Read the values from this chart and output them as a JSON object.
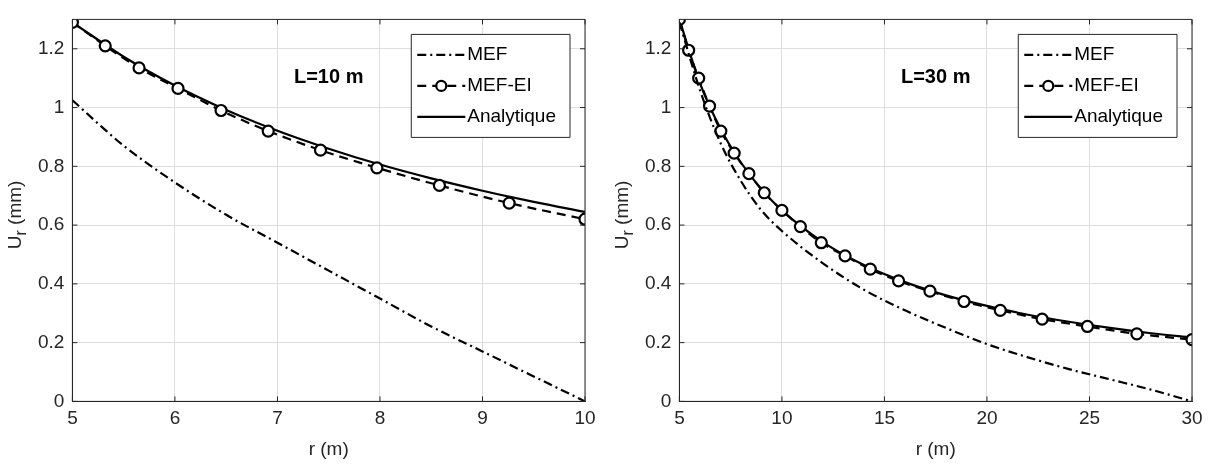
{
  "chart_data": [
    {
      "type": "line",
      "xlabel": "r (m)",
      "ylabel": "U$_{r}$ (mm)",
      "annotations": [
        "L=10 m"
      ],
      "xlim": [
        5,
        10
      ],
      "xticks": [
        5,
        6,
        7,
        8,
        9,
        10
      ],
      "ylim": [
        0,
        1.3
      ],
      "yticks": [
        0,
        0.2,
        0.4,
        0.6,
        0.8,
        1,
        1.2
      ],
      "grid": true,
      "legend": "top right",
      "series": [
        {
          "name": "MEF",
          "color": "#000000",
          "line_style": "dashdot",
          "marker": "none",
          "x": [
            5,
            5.3,
            5.5,
            6,
            6.5,
            7,
            7.5,
            8,
            8.5,
            9,
            9.5,
            10
          ],
          "values": [
            1.025,
            0.93,
            0.87,
            0.745,
            0.635,
            0.54,
            0.445,
            0.35,
            0.255,
            0.17,
            0.085,
            0
          ]
        },
        {
          "name": "MEF-EI",
          "color": "#000000",
          "line_style": "dashed",
          "marker": "circle",
          "x": [
            5,
            5.32,
            5.65,
            6.03,
            6.45,
            6.91,
            7.42,
            7.97,
            8.58,
            9.26,
            10
          ],
          "values": [
            1.29,
            1.21,
            1.135,
            1.065,
            0.99,
            0.92,
            0.855,
            0.795,
            0.735,
            0.675,
            0.62
          ]
        },
        {
          "name": "Analytique",
          "color": "#000000",
          "line_style": "solid",
          "marker": "none",
          "x": [
            5,
            5.5,
            6,
            6.5,
            7,
            7.5,
            8,
            8.5,
            9,
            9.5,
            10
          ],
          "values": [
            1.29,
            1.173,
            1.075,
            0.992,
            0.921,
            0.86,
            0.806,
            0.759,
            0.717,
            0.679,
            0.645
          ]
        }
      ]
    },
    {
      "type": "line",
      "xlabel": "r (m)",
      "ylabel": "U$_{r}$ (mm)",
      "annotations": [
        "L=30 m"
      ],
      "xlim": [
        5,
        30
      ],
      "xticks": [
        5,
        10,
        15,
        20,
        25,
        30
      ],
      "ylim": [
        0,
        1.3
      ],
      "yticks": [
        0,
        0.2,
        0.4,
        0.6,
        0.8,
        1,
        1.2
      ],
      "grid": true,
      "legend": "top right",
      "series": [
        {
          "name": "MEF",
          "color": "#000000",
          "line_style": "dashdot",
          "marker": "none",
          "x": [
            5,
            6,
            7,
            8,
            9,
            10,
            12,
            14,
            16,
            18,
            20,
            22,
            24,
            26,
            28,
            30
          ],
          "values": [
            1.29,
            1.06,
            0.88,
            0.75,
            0.65,
            0.58,
            0.47,
            0.38,
            0.31,
            0.25,
            0.195,
            0.15,
            0.11,
            0.075,
            0.04,
            0
          ]
        },
        {
          "name": "MEF-EI",
          "color": "#000000",
          "line_style": "dashed",
          "marker": "circle",
          "x": [
            5,
            5.45,
            5.94,
            6.47,
            7.02,
            7.67,
            8.39,
            9.14,
            10,
            10.9,
            11.92,
            13.08,
            14.31,
            15.69,
            17.22,
            18.88,
            20.65,
            22.69,
            24.9,
            27.31,
            30
          ],
          "values": [
            1.3,
            1.195,
            1.1,
            1.005,
            0.92,
            0.845,
            0.775,
            0.71,
            0.65,
            0.595,
            0.54,
            0.495,
            0.45,
            0.41,
            0.375,
            0.34,
            0.31,
            0.28,
            0.255,
            0.23,
            0.21
          ]
        },
        {
          "name": "Analytique",
          "color": "#000000",
          "line_style": "solid",
          "marker": "none",
          "x": [
            5,
            6,
            7,
            8,
            9,
            10,
            12,
            14,
            16,
            18,
            20,
            22,
            24,
            26,
            28,
            30
          ],
          "values": [
            1.3,
            1.083,
            0.929,
            0.813,
            0.722,
            0.65,
            0.542,
            0.464,
            0.406,
            0.361,
            0.325,
            0.295,
            0.271,
            0.25,
            0.232,
            0.217
          ]
        }
      ]
    }
  ]
}
